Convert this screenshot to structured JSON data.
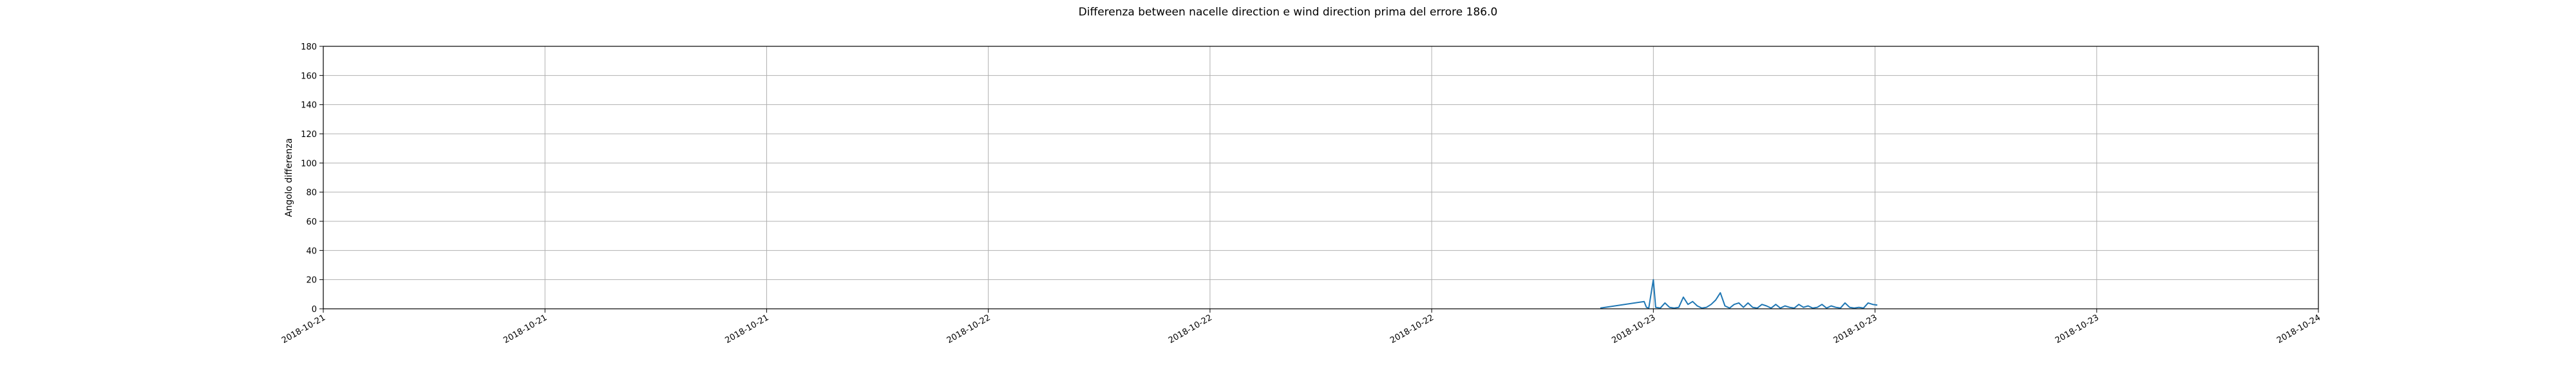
{
  "chart_data": {
    "type": "line",
    "title": "Differenza between nacelle direction e wind direction prima del errore 186.0",
    "xlabel": "",
    "ylabel": "Angolo differenza",
    "ylim": [
      0,
      180
    ],
    "xlim": [
      "2018-10-21T00:00",
      "2018-10-24T00:00"
    ],
    "grid": true,
    "y_ticks": [
      0,
      20,
      40,
      60,
      80,
      100,
      120,
      140,
      160,
      180
    ],
    "x_ticks": [
      {
        "time": "2018-10-21T00:00",
        "label": "2018-10-21"
      },
      {
        "time": "2018-10-21T08:00",
        "label": "2018-10-21"
      },
      {
        "time": "2018-10-21T16:00",
        "label": "2018-10-21"
      },
      {
        "time": "2018-10-22T00:00",
        "label": "2018-10-22"
      },
      {
        "time": "2018-10-22T08:00",
        "label": "2018-10-22"
      },
      {
        "time": "2018-10-22T16:00",
        "label": "2018-10-22"
      },
      {
        "time": "2018-10-23T00:00",
        "label": "2018-10-23"
      },
      {
        "time": "2018-10-23T08:00",
        "label": "2018-10-23"
      },
      {
        "time": "2018-10-23T16:00",
        "label": "2018-10-23"
      },
      {
        "time": "2018-10-24T00:00",
        "label": "2018-10-24"
      }
    ],
    "series": [
      {
        "color": "#1f77b4",
        "x": [
          "2018-10-22T22:05",
          "2018-10-22T23:40",
          "2018-10-22T23:45",
          "2018-10-22T23:50",
          "2018-10-23T00:00",
          "2018-10-23T00:05",
          "2018-10-23T00:15",
          "2018-10-23T00:25",
          "2018-10-23T00:35",
          "2018-10-23T00:45",
          "2018-10-23T00:55",
          "2018-10-23T01:05",
          "2018-10-23T01:15",
          "2018-10-23T01:25",
          "2018-10-23T01:35",
          "2018-10-23T01:45",
          "2018-10-23T01:55",
          "2018-10-23T02:05",
          "2018-10-23T02:15",
          "2018-10-23T02:25",
          "2018-10-23T02:35",
          "2018-10-23T02:45",
          "2018-10-23T02:55",
          "2018-10-23T03:05",
          "2018-10-23T03:15",
          "2018-10-23T03:25",
          "2018-10-23T03:35",
          "2018-10-23T03:45",
          "2018-10-23T03:55",
          "2018-10-23T04:05",
          "2018-10-23T04:15",
          "2018-10-23T04:25",
          "2018-10-23T04:35",
          "2018-10-23T04:45",
          "2018-10-23T04:55",
          "2018-10-23T05:05",
          "2018-10-23T05:15",
          "2018-10-23T05:25",
          "2018-10-23T05:35",
          "2018-10-23T05:45",
          "2018-10-23T05:55",
          "2018-10-23T06:05",
          "2018-10-23T06:15",
          "2018-10-23T06:25",
          "2018-10-23T06:35",
          "2018-10-23T06:45",
          "2018-10-23T06:55",
          "2018-10-23T07:05",
          "2018-10-23T07:15",
          "2018-10-23T07:25",
          "2018-10-23T07:35",
          "2018-10-23T07:45",
          "2018-10-23T07:55",
          "2018-10-23T08:05"
        ],
        "y": [
          0.5,
          5,
          1,
          0.5,
          20,
          1,
          0.5,
          4,
          1,
          0.5,
          1,
          8,
          3,
          5,
          2,
          0.5,
          1,
          3,
          6,
          11,
          2,
          0.5,
          3,
          4,
          1,
          4,
          1,
          0.5,
          3,
          2,
          0.5,
          3,
          0.5,
          2,
          1,
          0.5,
          3,
          1,
          2,
          0.5,
          1,
          3,
          0.5,
          2,
          1,
          0.5,
          4,
          1,
          0.5,
          1,
          0.5,
          4,
          3,
          2.5
        ]
      }
    ]
  }
}
